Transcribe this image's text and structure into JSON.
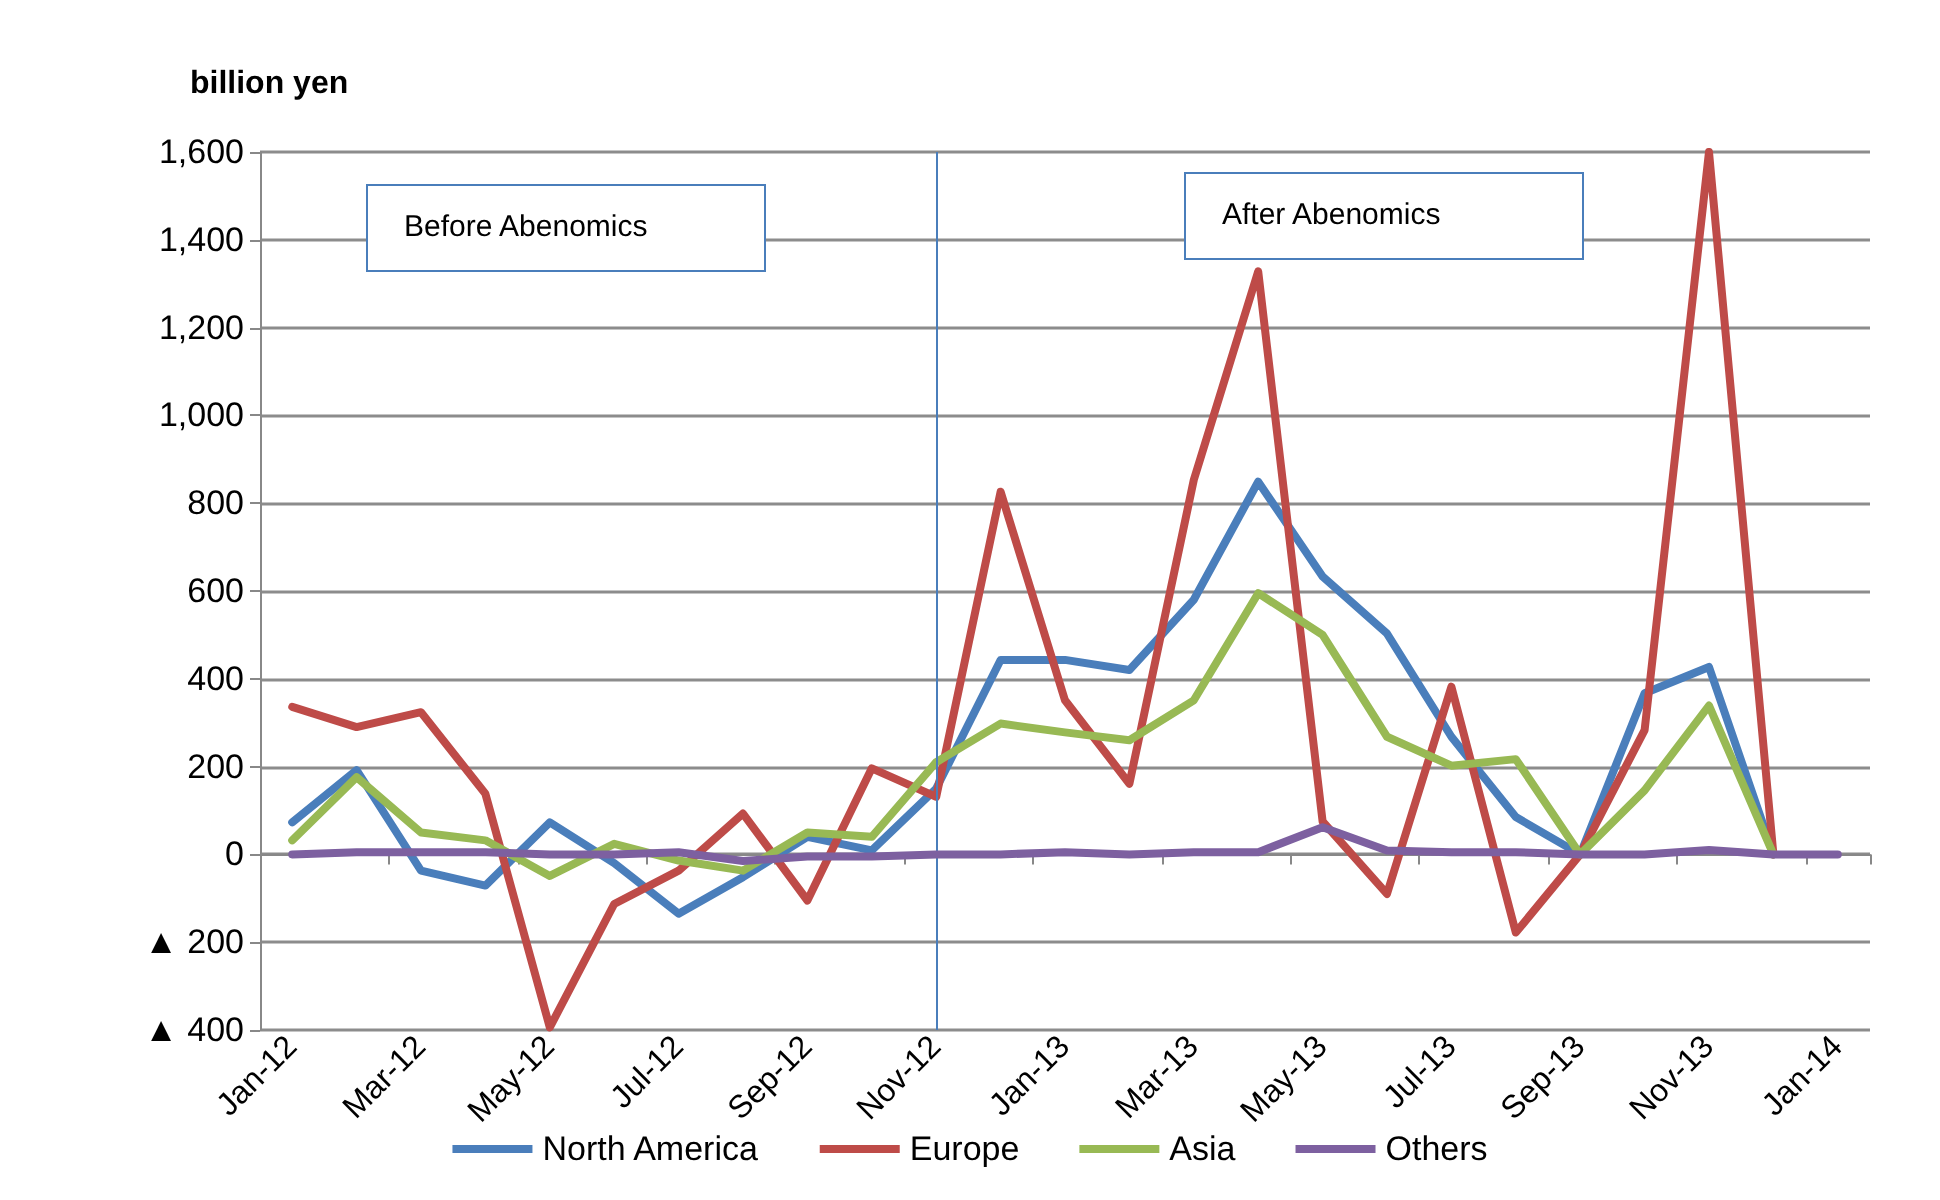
{
  "chart_data": {
    "type": "line",
    "ylabel": "billion yen",
    "categories": [
      "Jan-12",
      null,
      "Mar-12",
      null,
      "May-12",
      null,
      "Jul-12",
      null,
      "Sep-12",
      null,
      "Nov-12",
      null,
      "Jan-13",
      null,
      "Mar-13",
      null,
      "May-13",
      null,
      "Jul-13",
      null,
      "Sep-13",
      null,
      "Nov-13",
      null,
      "Jan-14"
    ],
    "series": [
      {
        "name": "North America",
        "color": "#4a7ebb",
        "values": [
          73,
          192,
          -37,
          -71,
          73,
          -20,
          -135,
          -52,
          40,
          9,
          150,
          443,
          443,
          420,
          580,
          849,
          633,
          503,
          268,
          85,
          0,
          367,
          427,
          0,
          null
        ]
      },
      {
        "name": "Europe",
        "color": "#be4b48",
        "values": [
          336,
          290,
          324,
          138,
          -394,
          -113,
          -37,
          93,
          -105,
          196,
          131,
          826,
          351,
          161,
          853,
          1328,
          75,
          -90,
          382,
          -178,
          0,
          283,
          1600,
          0,
          null
        ]
      },
      {
        "name": "Asia",
        "color": "#98b954",
        "values": [
          32,
          176,
          50,
          32,
          -49,
          24,
          -14,
          -37,
          50,
          40,
          210,
          298,
          278,
          260,
          351,
          595,
          500,
          268,
          202,
          217,
          0,
          146,
          339,
          0,
          null
        ]
      },
      {
        "name": "Others",
        "color": "#7d60a0",
        "values": [
          0,
          5,
          5,
          5,
          0,
          0,
          5,
          -15,
          -5,
          -5,
          0,
          0,
          5,
          0,
          5,
          5,
          62,
          9,
          5,
          5,
          0,
          0,
          10,
          0,
          0
        ]
      }
    ],
    "ylim": [
      -400,
      1600
    ],
    "yticks": [
      {
        "value": -400,
        "label": "▲ 400"
      },
      {
        "value": -200,
        "label": "▲ 200"
      },
      0,
      "200",
      400,
      600,
      800,
      {
        "value": 1000,
        "label": "1,000"
      },
      {
        "value": 1200,
        "label": "1,200"
      },
      {
        "value": 1400,
        "label": "1,400"
      },
      {
        "value": 1600,
        "label": "1,600"
      }
    ],
    "grid": "y",
    "legend": "bottom",
    "marker": "none",
    "line_style": "solid",
    "ref_lines": [
      {
        "axis": "x",
        "value": "Nov-12",
        "color": "#4a7ebb"
      }
    ],
    "annotations": [
      "Before Abenomics",
      "After Abenomics"
    ]
  }
}
